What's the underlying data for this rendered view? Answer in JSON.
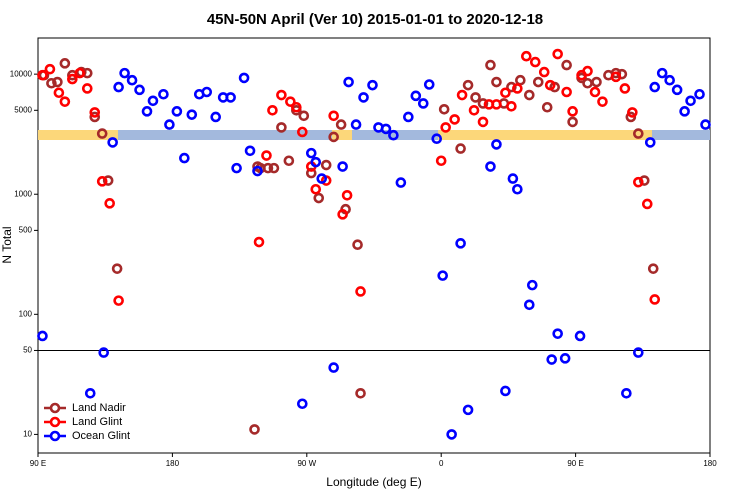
{
  "chart_data": {
    "type": "scatter",
    "title": "45N-50N April (Ver 10)   2015-01-01 to 2020-12-18",
    "x_label": "Longitude (deg E)",
    "y_label": "N Total",
    "xlim": [
      -270,
      180
    ],
    "xticks": [
      {
        "value": -270,
        "label": "90 E"
      },
      {
        "value": -180,
        "label": "180"
      },
      {
        "value": -90,
        "label": "90 W"
      },
      0,
      {
        "value": 90,
        "label": "90 E"
      },
      {
        "value": 180,
        "label": "180"
      }
    ],
    "ylim": [
      7,
      20000
    ],
    "log_y": true,
    "yticks": [
      10,
      50,
      100,
      500,
      1000,
      5000,
      10000
    ],
    "reference_line": 50,
    "legend": "lower left",
    "series": [
      {
        "name": "Land Nadir",
        "color": "#a52a2a",
        "x": [
          -266,
          -261,
          -257,
          -252,
          -247,
          -241,
          -237,
          -232,
          -227,
          -223,
          -217,
          -123,
          -121,
          -116,
          -112,
          -107,
          -102,
          -97,
          -92,
          -87,
          -82,
          -77,
          -72,
          -67,
          -64,
          -56,
          -54,
          -125,
          2,
          13,
          18,
          23,
          28,
          33,
          37,
          42,
          47,
          53,
          59,
          65,
          71,
          76,
          84,
          88,
          94,
          98,
          104,
          112,
          117,
          121,
          127,
          132,
          136,
          142
        ],
        "values": [
          9800,
          8400,
          8600,
          12300,
          9800,
          10400,
          10200,
          4400,
          3200,
          1300,
          240,
          1700,
          1650,
          1650,
          1650,
          3600,
          1900,
          5000,
          4500,
          1500,
          930,
          1750,
          3000,
          3800,
          750,
          380,
          22,
          11,
          5100,
          2400,
          8100,
          6400,
          5700,
          11900,
          8600,
          5700,
          7800,
          8900,
          6700,
          8600,
          5300,
          7800,
          11900,
          4000,
          9300,
          8400,
          8600,
          9800,
          10200,
          10000,
          4400,
          3200,
          1300,
          240
        ]
      },
      {
        "name": "Land Glint",
        "color": "#ff0000",
        "x": [
          -267,
          -262,
          -256,
          -252,
          -247,
          -242,
          -237,
          -232,
          -227,
          -222,
          -216,
          -122,
          -117,
          -113,
          -107,
          -101,
          -97,
          -93,
          -87,
          -84,
          -77,
          -72,
          -66,
          -63,
          -54,
          0,
          3,
          9,
          14,
          22,
          28,
          32,
          37,
          43,
          47,
          51,
          57,
          63,
          69,
          73,
          78,
          84,
          88,
          94,
          98,
          103,
          108,
          117,
          123,
          128,
          132,
          138,
          143
        ],
        "values": [
          9800,
          11000,
          7000,
          5900,
          9100,
          10200,
          7600,
          4800,
          1280,
          840,
          130,
          400,
          2100,
          5000,
          6700,
          5900,
          5300,
          3300,
          1700,
          1100,
          1300,
          4500,
          680,
          980,
          155,
          1900,
          3600,
          4200,
          6700,
          5000,
          4000,
          5600,
          5600,
          7000,
          5400,
          7600,
          14100,
          12600,
          10400,
          8100,
          14700,
          7100,
          4900,
          9800,
          10600,
          7100,
          5900,
          9500,
          7600,
          4800,
          1260,
          830,
          133
        ]
      },
      {
        "name": "Ocean Glint",
        "color": "#0000ff",
        "x": [
          -267,
          -235,
          -226,
          -220,
          -216,
          -212,
          -207,
          -202,
          -197,
          -193,
          -186,
          -182,
          -177,
          -172,
          -167,
          -162,
          -157,
          -151,
          -146,
          -141,
          -137,
          -132,
          -128,
          -123,
          -93,
          -87,
          -84,
          -80,
          -72,
          -66,
          -62,
          -57,
          -52,
          -46,
          -42,
          -37,
          -32,
          -27,
          -22,
          -17,
          -12,
          -8,
          -3,
          1,
          7,
          13,
          18,
          33,
          37,
          43,
          48,
          51,
          59,
          61,
          74,
          78,
          83,
          93,
          124,
          132,
          140,
          143,
          148,
          153,
          158,
          163,
          167,
          173,
          177
        ],
        "values": [
          66,
          22,
          48,
          2700,
          7800,
          10200,
          8900,
          7400,
          4900,
          6000,
          6800,
          3800,
          4900,
          2000,
          4600,
          6800,
          7100,
          4400,
          6400,
          6400,
          1650,
          9300,
          2300,
          1560,
          18,
          2200,
          1850,
          1350,
          36,
          1700,
          8600,
          3800,
          6400,
          8100,
          3600,
          3500,
          3100,
          1250,
          4400,
          6600,
          5700,
          8200,
          2900,
          210,
          10,
          390,
          16,
          1700,
          2600,
          23,
          1350,
          1100,
          120,
          175,
          42,
          69,
          43,
          66,
          22,
          48,
          2700,
          7800,
          10200,
          8900,
          7400,
          4900,
          6000,
          6800,
          3800
        ]
      }
    ]
  }
}
